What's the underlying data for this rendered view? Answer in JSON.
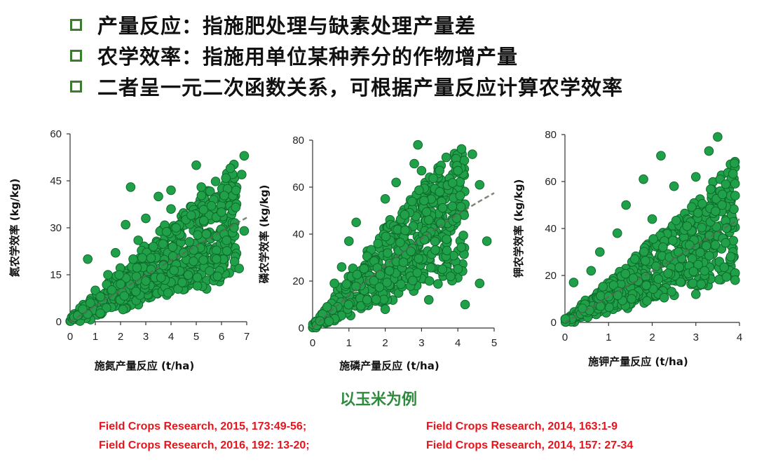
{
  "bullets": [
    {
      "text": "产量反应：指施肥处理与缺素处理产量差"
    },
    {
      "text": "农学效率：指施用单位某种养分的作物增产量"
    },
    {
      "text": "二者呈一元二次函数关系，可根据产量反应计算农学效率"
    }
  ],
  "caption": "以玉米为例",
  "references": [
    "Field Crops Research, 2015, 173:49-56;",
    "Field Crops Research, 2014, 163:1-9",
    "Field Crops Research, 2016, 192: 13-20;",
    "Field Crops Research, 2014, 157: 27-34"
  ],
  "colors": {
    "accent": "#2e8b3e",
    "points": "#21a04a",
    "reference": "#e8141c"
  },
  "chart_data": [
    {
      "type": "scatter",
      "title": "",
      "xlabel": "施氮产量反应 (t/ha)",
      "ylabel": "氮农学效率 (kg/kg)",
      "xlim": [
        0,
        7
      ],
      "ylim": [
        0,
        60
      ],
      "xticks": [
        0,
        1,
        2,
        3,
        4,
        5,
        6,
        7
      ],
      "yticks": [
        0,
        15,
        30,
        45,
        60
      ],
      "fit": {
        "a": 5.1,
        "b": -0.05
      },
      "points": [
        [
          0.3,
          2
        ],
        [
          0.5,
          4
        ],
        [
          0.7,
          20
        ],
        [
          0.8,
          6
        ],
        [
          1.0,
          10
        ],
        [
          1.2,
          8
        ],
        [
          1.5,
          15
        ],
        [
          1.8,
          22
        ],
        [
          2.0,
          12
        ],
        [
          2.2,
          31
        ],
        [
          2.4,
          43
        ],
        [
          2.5,
          20
        ],
        [
          2.7,
          26
        ],
        [
          3.0,
          33
        ],
        [
          3.0,
          13
        ],
        [
          3.3,
          24
        ],
        [
          3.5,
          40
        ],
        [
          3.7,
          18
        ],
        [
          4.0,
          36
        ],
        [
          4.0,
          42
        ],
        [
          4.2,
          30
        ],
        [
          4.5,
          22
        ],
        [
          4.8,
          34
        ],
        [
          5.0,
          50
        ],
        [
          5.2,
          43
        ],
        [
          5.4,
          28
        ],
        [
          5.6,
          37
        ],
        [
          5.8,
          20
        ],
        [
          6.0,
          35
        ],
        [
          6.2,
          26
        ],
        [
          6.5,
          30
        ],
        [
          6.8,
          47
        ],
        [
          6.9,
          53
        ],
        [
          6.9,
          29
        ],
        [
          6.7,
          17
        ]
      ],
      "density": {
        "count": 620,
        "x_max": 6.6,
        "seed": 11
      }
    },
    {
      "type": "scatter",
      "title": "",
      "xlabel": "施磷产量反应 (t/ha)",
      "ylabel": "磷农学效率 (kg/kg)",
      "xlim": [
        0,
        5
      ],
      "ylim": [
        0,
        80
      ],
      "xticks": [
        0,
        1,
        2,
        3,
        4,
        5
      ],
      "yticks": [
        0,
        20,
        40,
        60,
        80
      ],
      "fit": {
        "a": 14.5,
        "b": -0.6
      },
      "points": [
        [
          0.2,
          3
        ],
        [
          0.4,
          9
        ],
        [
          0.6,
          19
        ],
        [
          0.8,
          26
        ],
        [
          1.0,
          37
        ],
        [
          1.2,
          45
        ],
        [
          1.5,
          12
        ],
        [
          1.8,
          36
        ],
        [
          2.0,
          55
        ],
        [
          2.0,
          8
        ],
        [
          2.3,
          62
        ],
        [
          2.5,
          28
        ],
        [
          2.8,
          70
        ],
        [
          2.9,
          78
        ],
        [
          3.0,
          67
        ],
        [
          3.2,
          46
        ],
        [
          3.2,
          12
        ],
        [
          3.5,
          58
        ],
        [
          3.7,
          33
        ],
        [
          3.8,
          22
        ],
        [
          4.0,
          67
        ],
        [
          4.2,
          10
        ],
        [
          4.4,
          74
        ],
        [
          4.6,
          61
        ],
        [
          4.6,
          19
        ],
        [
          4.8,
          37
        ]
      ],
      "density": {
        "count": 560,
        "x_max": 4.2,
        "seed": 23
      }
    },
    {
      "type": "scatter",
      "title": "",
      "xlabel": "施钾产量反应 (t/ha)",
      "ylabel": "钾农学效率 (kg/kg)",
      "xlim": [
        0,
        4
      ],
      "ylim": [
        0,
        80
      ],
      "xticks": [
        0,
        1,
        2,
        3,
        4
      ],
      "yticks": [
        0,
        20,
        40,
        60,
        80
      ],
      "fit": {
        "a": 10.8,
        "b": 0.05
      },
      "points": [
        [
          0.2,
          17
        ],
        [
          0.4,
          6
        ],
        [
          0.6,
          22
        ],
        [
          0.8,
          30
        ],
        [
          1.0,
          11
        ],
        [
          1.2,
          38
        ],
        [
          1.4,
          50
        ],
        [
          1.6,
          27
        ],
        [
          1.8,
          61
        ],
        [
          2.0,
          44
        ],
        [
          2.2,
          71
        ],
        [
          2.5,
          58
        ],
        [
          2.6,
          30
        ],
        [
          2.8,
          41
        ],
        [
          3.0,
          62
        ],
        [
          3.2,
          22
        ],
        [
          3.3,
          73
        ],
        [
          3.5,
          79
        ],
        [
          3.6,
          50
        ],
        [
          3.8,
          28
        ],
        [
          3.9,
          54
        ],
        [
          3.9,
          18
        ],
        [
          3.0,
          12
        ]
      ],
      "density": {
        "count": 640,
        "x_max": 3.9,
        "seed": 37
      }
    }
  ]
}
